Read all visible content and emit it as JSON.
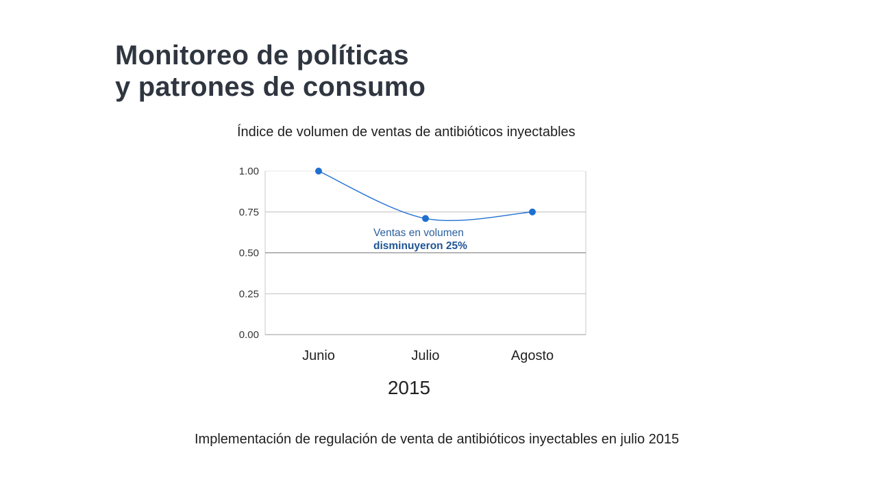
{
  "slide": {
    "title_line1": "Monitoreo de políticas",
    "title_line2": "y patrones de consumo",
    "caption": "Implementación de regulación de venta de antibióticos inyectables en julio 2015"
  },
  "chart_data": {
    "type": "line",
    "title": "Índice de volumen de ventas de antibióticos inyectables",
    "categories": [
      "Junio",
      "Julio",
      "Agosto"
    ],
    "xlabel": "2015",
    "ylabel": "",
    "ylim": [
      0,
      1
    ],
    "yticks": [
      "1.00",
      "0.75",
      "0.50",
      "0.25",
      "0.00"
    ],
    "series": [
      {
        "values": [
          1.0,
          0.71,
          0.75
        ],
        "color": "#1f6fd1"
      }
    ],
    "annotation": {
      "line1": "Ventas en volumen",
      "line2": "disminuyeron 25%"
    },
    "grid": true,
    "legend": "none"
  }
}
